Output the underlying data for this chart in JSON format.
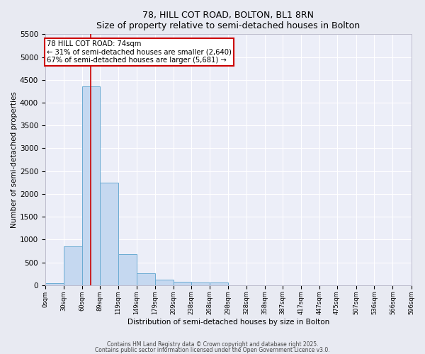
{
  "title": "78, HILL COT ROAD, BOLTON, BL1 8RN",
  "subtitle": "Size of property relative to semi-detached houses in Bolton",
  "xlabel": "Distribution of semi-detached houses by size in Bolton",
  "ylabel": "Number of semi-detached properties",
  "bar_values": [
    50,
    850,
    4350,
    2250,
    680,
    260,
    120,
    70,
    60,
    60,
    0,
    0,
    0,
    0,
    0,
    0,
    0,
    0,
    0,
    0
  ],
  "bar_edges": [
    0,
    30,
    60,
    89,
    119,
    149,
    179,
    209,
    238,
    268,
    298,
    328,
    358,
    387,
    417,
    447,
    475,
    507,
    536,
    566,
    596
  ],
  "tick_labels": [
    "0sqm",
    "30sqm",
    "60sqm",
    "89sqm",
    "119sqm",
    "149sqm",
    "179sqm",
    "209sqm",
    "238sqm",
    "268sqm",
    "298sqm",
    "328sqm",
    "358sqm",
    "387sqm",
    "417sqm",
    "447sqm",
    "475sqm",
    "507sqm",
    "536sqm",
    "566sqm",
    "596sqm"
  ],
  "bar_color": "#c5d8f0",
  "bar_edge_color": "#6aabd2",
  "vline_x": 74,
  "vline_color": "#cc0000",
  "ylim": [
    0,
    5500
  ],
  "yticks": [
    0,
    500,
    1000,
    1500,
    2000,
    2500,
    3000,
    3500,
    4000,
    4500,
    5000,
    5500
  ],
  "annotation_title": "78 HILL COT ROAD: 74sqm",
  "annotation_line1": "← 31% of semi-detached houses are smaller (2,640)",
  "annotation_line2": "67% of semi-detached houses are larger (5,681) →",
  "annotation_box_color": "#cc0000",
  "bg_color": "#e8eaf2",
  "plot_bg_color": "#eceef8",
  "footer1": "Contains HM Land Registry data © Crown copyright and database right 2025.",
  "footer2": "Contains public sector information licensed under the Open Government Licence v3.0."
}
